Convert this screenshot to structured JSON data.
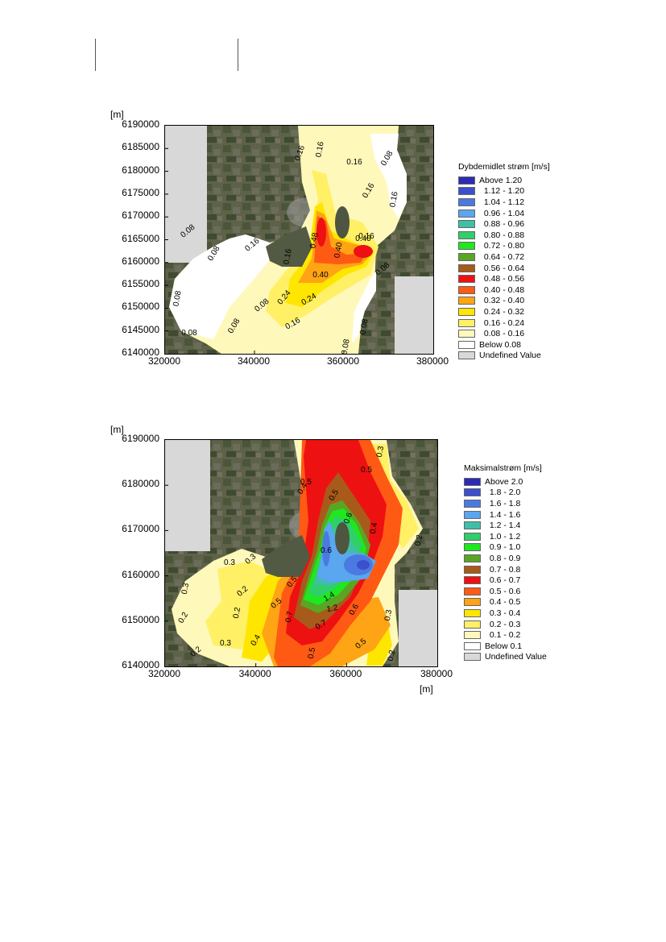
{
  "chart_data": [
    {
      "type": "heatmap",
      "y_unit": "[m]",
      "x_unit": "",
      "x_ticks": [
        "320000",
        "340000",
        "360000",
        "380000"
      ],
      "y_ticks": [
        "6190000",
        "6185000",
        "6180000",
        "6175000",
        "6170000",
        "6165000",
        "6160000",
        "6155000",
        "6150000",
        "6145000",
        "6140000"
      ],
      "xlim": [
        320000,
        380000
      ],
      "ylim": [
        6140000,
        6190000
      ],
      "legend_title": "Dybdemidlet strøm [m/s]",
      "legend": [
        {
          "label": "Above 1.20",
          "color": "#2b2bb5"
        },
        {
          "label": "1.12 - 1.20",
          "color": "#3c4fcc"
        },
        {
          "label": "1.04 - 1.12",
          "color": "#4a7ae0"
        },
        {
          "label": "0.96 - 1.04",
          "color": "#5aa6ef"
        },
        {
          "label": "0.88 - 0.96",
          "color": "#3fbfa8"
        },
        {
          "label": "0.80 - 0.88",
          "color": "#2fcf6a"
        },
        {
          "label": "0.72 - 0.80",
          "color": "#1ee81e"
        },
        {
          "label": "0.64 - 0.72",
          "color": "#5ba525"
        },
        {
          "label": "0.56 - 0.64",
          "color": "#a85a1a"
        },
        {
          "label": "0.48 - 0.56",
          "color": "#ee1111"
        },
        {
          "label": "0.40 - 0.48",
          "color": "#ff5a14"
        },
        {
          "label": "0.32 - 0.40",
          "color": "#ffa414"
        },
        {
          "label": "0.24 - 0.32",
          "color": "#ffe600"
        },
        {
          "label": "0.16 - 0.24",
          "color": "#fff066"
        },
        {
          "label": "0.08 - 0.16",
          "color": "#fff8bb"
        },
        {
          "label": "Below 0.08",
          "color": "#ffffff"
        },
        {
          "label": "Undefined Value",
          "color": "#d8d8d8"
        }
      ],
      "contour_labels": [
        "0.16",
        "0.16",
        "0.16",
        "0.16",
        "0.16",
        "0.16",
        "0.16",
        "0.08",
        "0.08",
        "0.08",
        "0.08",
        "0.08",
        "0.08",
        "0.08",
        "0.08",
        "0.08",
        "0.08",
        "0.40",
        "0.40",
        "0.40",
        "0.48",
        "0.24",
        "0.24",
        "0.16",
        "0.16"
      ]
    },
    {
      "type": "heatmap",
      "y_unit": "[m]",
      "x_unit": "[m]",
      "x_ticks": [
        "320000",
        "340000",
        "360000",
        "380000"
      ],
      "y_ticks": [
        "6190000",
        "6180000",
        "6170000",
        "6160000",
        "6150000",
        "6140000"
      ],
      "xlim": [
        320000,
        380000
      ],
      "ylim": [
        6140000,
        6190000
      ],
      "legend_title": "Maksimalstrøm [m/s]",
      "legend": [
        {
          "label": "Above 2.0",
          "color": "#2b2bb5"
        },
        {
          "label": "1.8 - 2.0",
          "color": "#3c4fcc"
        },
        {
          "label": "1.6 - 1.8",
          "color": "#4a7ae0"
        },
        {
          "label": "1.4 - 1.6",
          "color": "#5aa6ef"
        },
        {
          "label": "1.2 - 1.4",
          "color": "#3fbfa8"
        },
        {
          "label": "1.0 - 1.2",
          "color": "#2fcf6a"
        },
        {
          "label": "0.9 - 1.0",
          "color": "#1ee81e"
        },
        {
          "label": "0.8 - 0.9",
          "color": "#5ba525"
        },
        {
          "label": "0.7 - 0.8",
          "color": "#a85a1a"
        },
        {
          "label": "0.6 - 0.7",
          "color": "#ee1111"
        },
        {
          "label": "0.5 - 0.6",
          "color": "#ff5a14"
        },
        {
          "label": "0.4 - 0.5",
          "color": "#ffa414"
        },
        {
          "label": "0.3 - 0.4",
          "color": "#ffe600"
        },
        {
          "label": "0.2 - 0.3",
          "color": "#fff066"
        },
        {
          "label": "0.1 - 0.2",
          "color": "#fff8bb"
        },
        {
          "label": "Below 0.1",
          "color": "#ffffff"
        },
        {
          "label": "Undefined Value",
          "color": "#d8d8d8"
        }
      ],
      "contour_labels": [
        "0.3",
        "0.3",
        "0.3",
        "0.2",
        "0.2",
        "0.2",
        "0.2",
        "0.3",
        "0.4",
        "0.5",
        "0.5",
        "0.5",
        "0.5",
        "0.7",
        "0.7",
        "1.4",
        "1.2",
        "0.6",
        "0.6",
        "0.5",
        "0.4",
        "0.3",
        "0.2",
        "0.3",
        "0.5",
        "0.5",
        "0.6",
        "0.4",
        "0.2"
      ]
    }
  ]
}
